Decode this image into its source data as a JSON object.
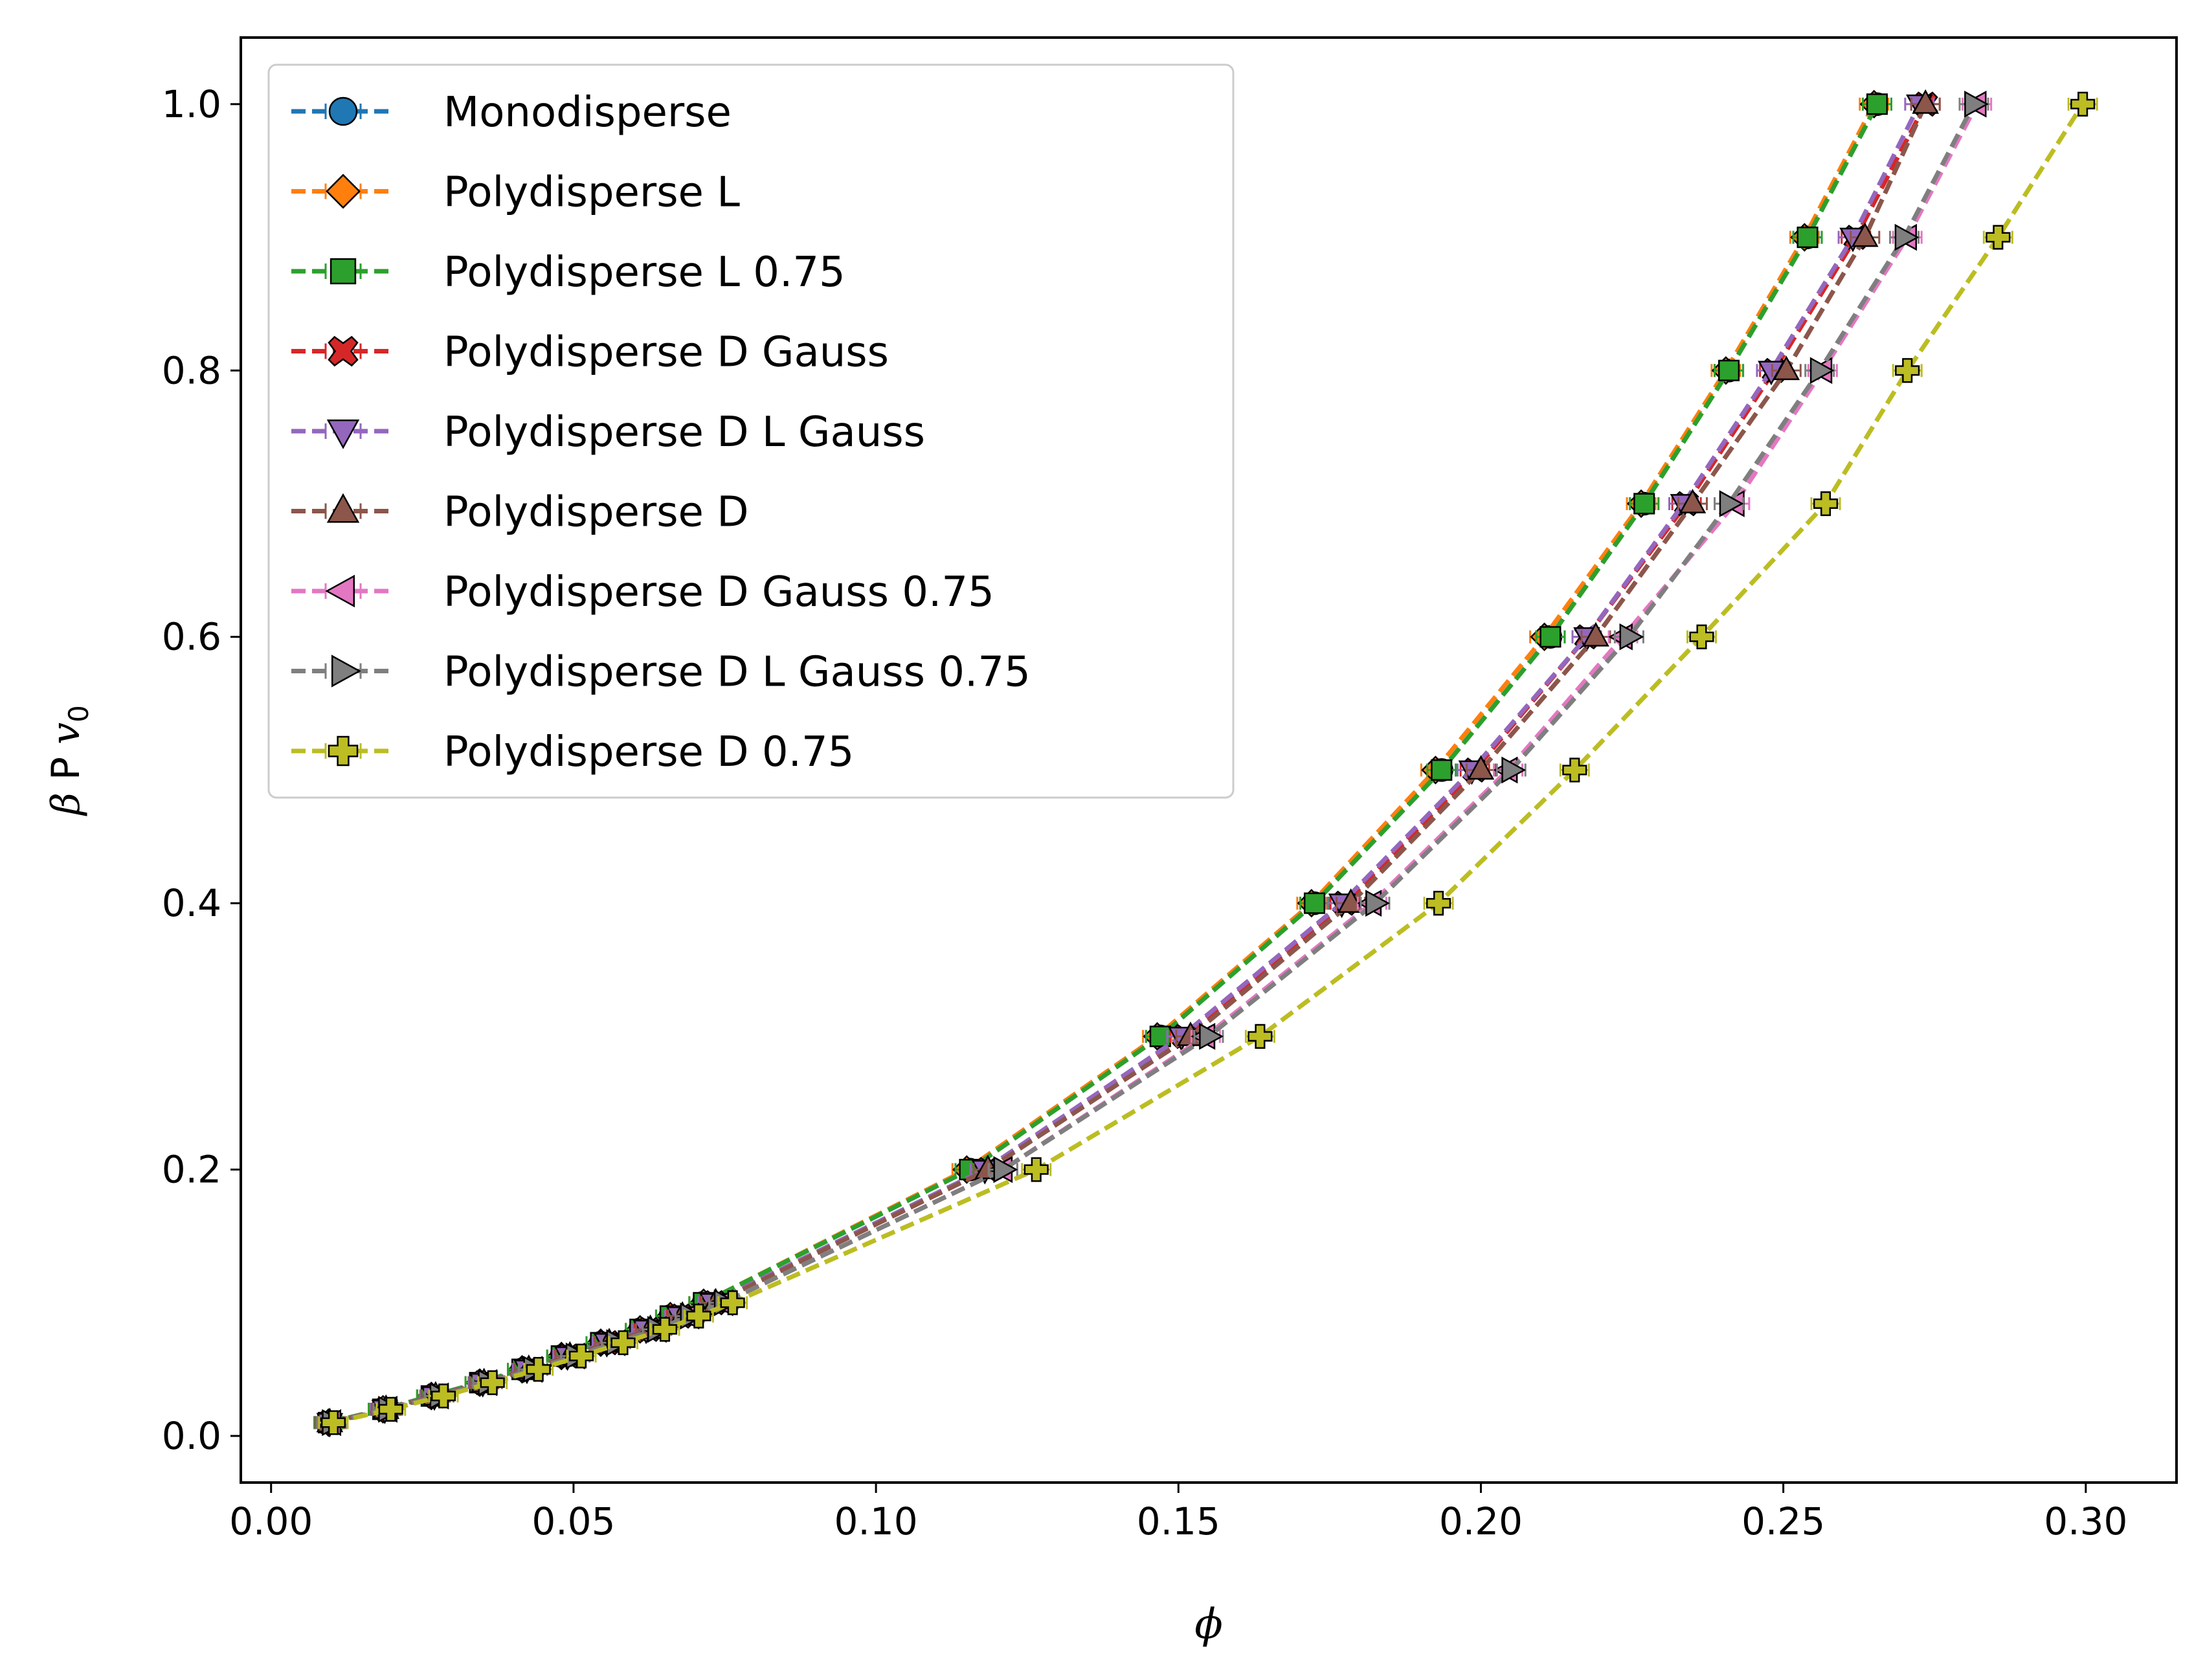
{
  "chart_data": {
    "type": "line",
    "xlabel": "ϕ",
    "ylabel": "β P v0",
    "ylabel_parts": {
      "main": "β P v",
      "subscript": "0"
    },
    "xlim": [
      -0.005,
      0.315
    ],
    "ylim": [
      -0.035,
      1.05
    ],
    "x_ticks": [
      0.0,
      0.05,
      0.1,
      0.15,
      0.2,
      0.25,
      0.3
    ],
    "x_tick_labels": [
      "0.00",
      "0.05",
      "0.10",
      "0.15",
      "0.20",
      "0.25",
      "0.30"
    ],
    "y_ticks": [
      0.0,
      0.2,
      0.4,
      0.6,
      0.8,
      1.0
    ],
    "y_tick_labels": [
      "0.0",
      "0.2",
      "0.4",
      "0.6",
      "0.8",
      "1.0"
    ],
    "grid": false,
    "legend_position": "upper-left",
    "line_style": "dashed",
    "y": [
      0.01,
      0.02,
      0.03,
      0.04,
      0.05,
      0.06,
      0.07,
      0.08,
      0.09,
      0.1,
      0.2,
      0.3,
      0.4,
      0.5,
      0.6,
      0.7,
      0.8,
      0.9,
      1.0
    ],
    "series": [
      {
        "name": "Monodisperse",
        "color": "#1f77b4",
        "marker": "circle",
        "x": [
          0.0095,
          0.0185,
          0.0265,
          0.0345,
          0.0415,
          0.048,
          0.0545,
          0.061,
          0.066,
          0.0715,
          0.1155,
          0.147,
          0.1725,
          0.1935,
          0.2115,
          0.227,
          0.241,
          0.254,
          0.2655
        ]
      },
      {
        "name": "Polydisperse L",
        "color": "#ff7f0e",
        "marker": "diamond",
        "x": [
          0.0095,
          0.0185,
          0.0265,
          0.0345,
          0.0415,
          0.048,
          0.0545,
          0.061,
          0.066,
          0.0715,
          0.115,
          0.1465,
          0.172,
          0.1925,
          0.2105,
          0.2265,
          0.2405,
          0.2535,
          0.265
        ]
      },
      {
        "name": "Polydisperse L 0.75",
        "color": "#2ca02c",
        "marker": "square",
        "x": [
          0.0095,
          0.0185,
          0.0265,
          0.0345,
          0.0415,
          0.048,
          0.0545,
          0.061,
          0.066,
          0.0715,
          0.1155,
          0.147,
          0.1725,
          0.1935,
          0.2115,
          0.227,
          0.241,
          0.254,
          0.2655
        ]
      },
      {
        "name": "Polydisperse D Gauss",
        "color": "#d62728",
        "marker": "x",
        "x": [
          0.0097,
          0.019,
          0.0272,
          0.0352,
          0.0425,
          0.0492,
          0.0557,
          0.0625,
          0.0678,
          0.0733,
          0.1185,
          0.151,
          0.1775,
          0.199,
          0.2175,
          0.234,
          0.2485,
          0.262,
          0.2735
        ]
      },
      {
        "name": "Polydisperse D L Gauss",
        "color": "#9467bd",
        "marker": "triangle-down",
        "x": [
          0.0097,
          0.0188,
          0.027,
          0.035,
          0.0423,
          0.049,
          0.0555,
          0.062,
          0.0675,
          0.073,
          0.118,
          0.1505,
          0.177,
          0.1985,
          0.2175,
          0.2335,
          0.248,
          0.2615,
          0.2725
        ]
      },
      {
        "name": "Polydisperse D",
        "color": "#8c564b",
        "marker": "triangle-up",
        "x": [
          0.0097,
          0.019,
          0.0272,
          0.0352,
          0.0426,
          0.0494,
          0.0559,
          0.0627,
          0.068,
          0.0735,
          0.1185,
          0.152,
          0.1785,
          0.2,
          0.219,
          0.235,
          0.2505,
          0.2635,
          0.2735
        ]
      },
      {
        "name": "Polydisperse D Gauss 0.75",
        "color": "#e377c2",
        "marker": "triangle-left",
        "x": [
          0.01,
          0.0193,
          0.0278,
          0.0358,
          0.0433,
          0.0503,
          0.057,
          0.0638,
          0.0692,
          0.0748,
          0.121,
          0.1545,
          0.182,
          0.2045,
          0.2235,
          0.242,
          0.2565,
          0.2705,
          0.282
        ]
      },
      {
        "name": "Polydisperse D L Gauss 0.75",
        "color": "#7f7f7f",
        "marker": "triangle-right",
        "x": [
          0.01,
          0.0193,
          0.0278,
          0.0358,
          0.0433,
          0.0503,
          0.057,
          0.0638,
          0.0692,
          0.0748,
          0.121,
          0.155,
          0.1825,
          0.205,
          0.2245,
          0.241,
          0.256,
          0.27,
          0.2815
        ]
      },
      {
        "name": "Polydisperse D 0.75",
        "color": "#bcbd22",
        "marker": "plus",
        "x": [
          0.0103,
          0.0198,
          0.0285,
          0.0366,
          0.0442,
          0.0513,
          0.0582,
          0.0651,
          0.0707,
          0.0763,
          0.1265,
          0.1635,
          0.193,
          0.2155,
          0.2365,
          0.257,
          0.2705,
          0.2855,
          0.2995
        ]
      }
    ]
  }
}
